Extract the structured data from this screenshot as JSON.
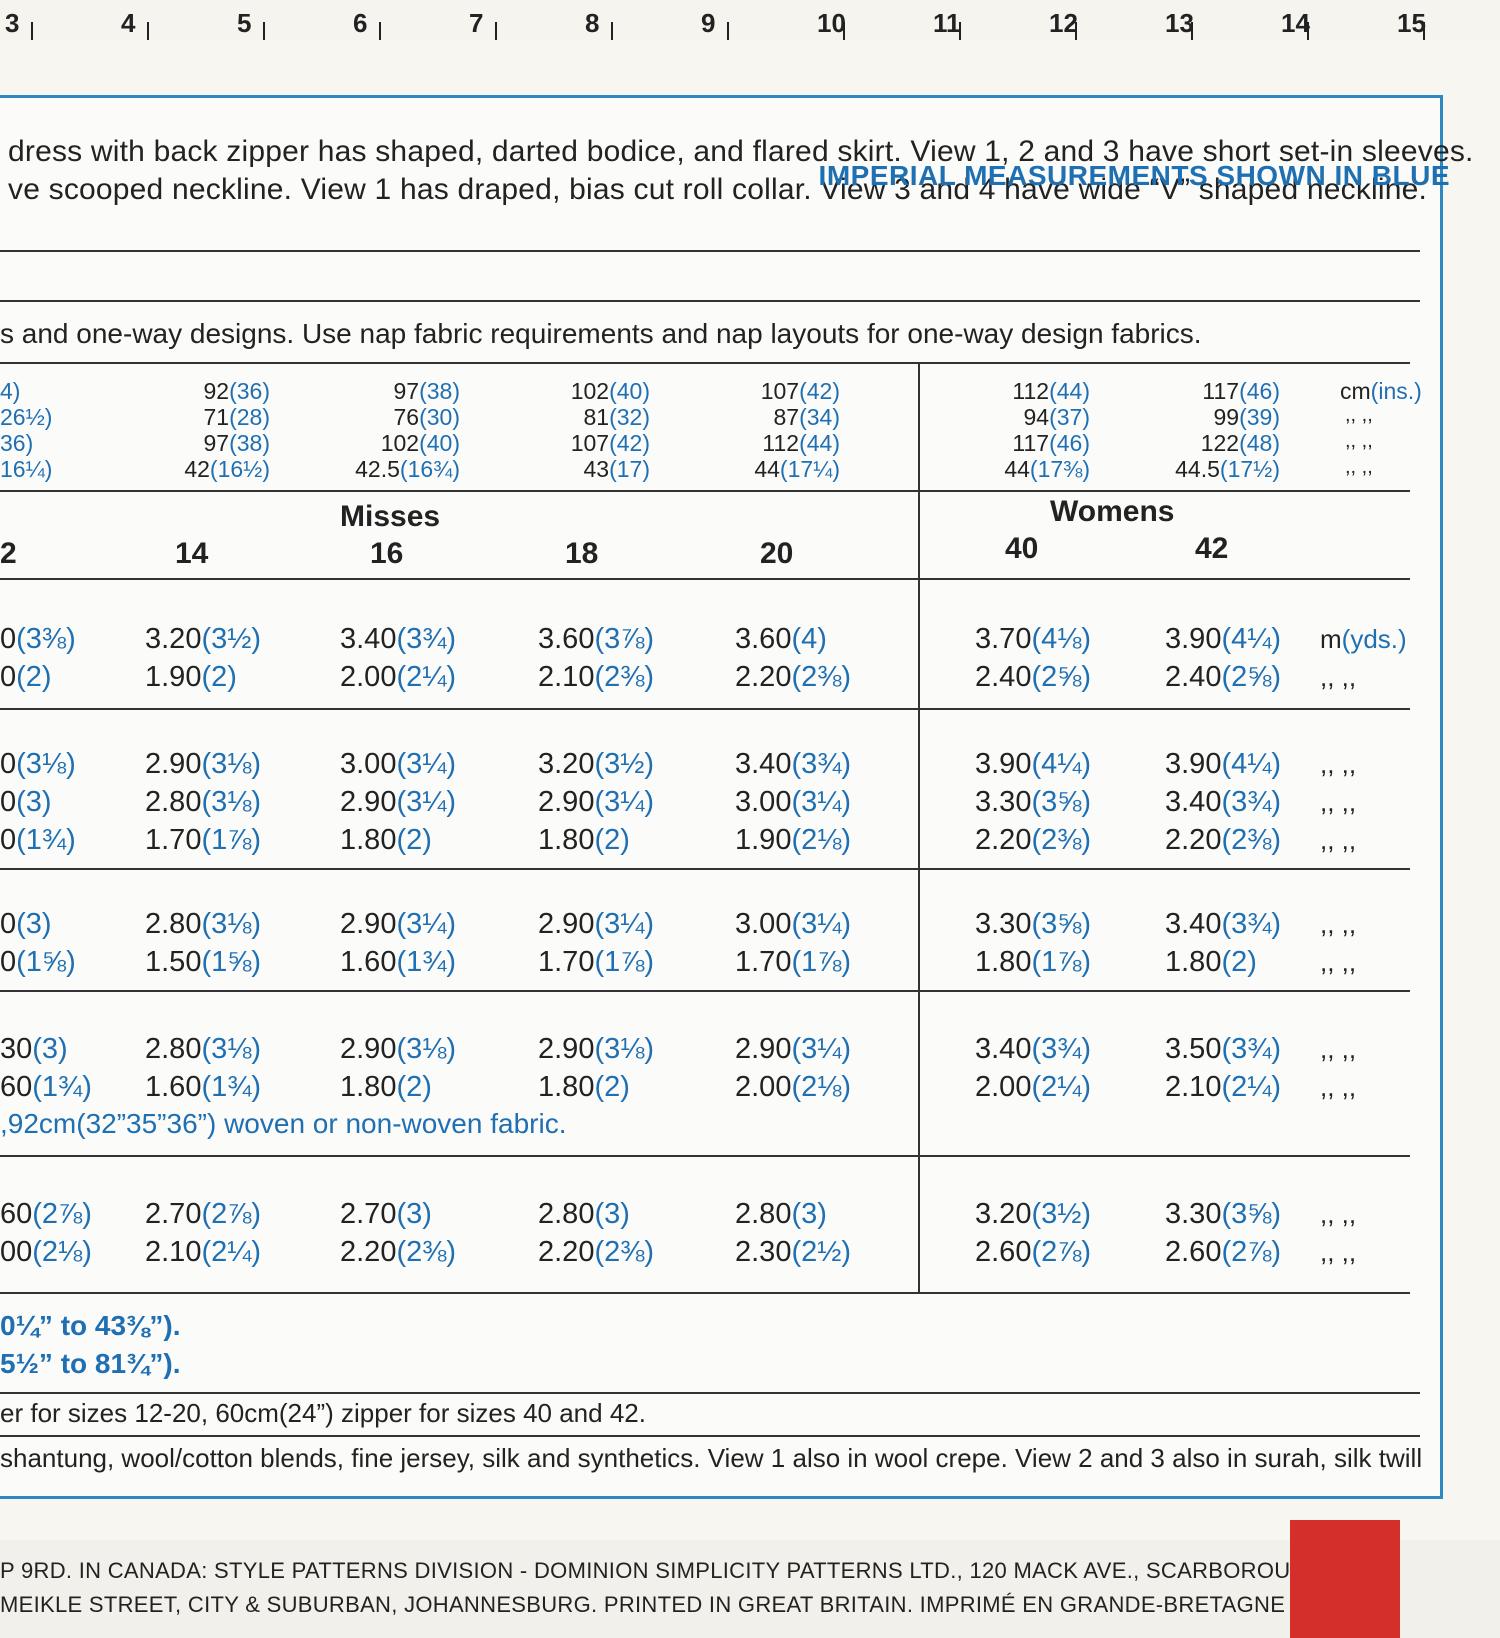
{
  "ruler": {
    "numbers": [
      "3",
      "4",
      "5",
      "6",
      "7",
      "8",
      "9",
      "10",
      "11",
      "12",
      "13",
      "14",
      "15"
    ]
  },
  "description": {
    "line1": "dress with back zipper has shaped, darted bodice, and flared skirt. View 1, 2 and 3 have short set-in sleeves.",
    "line2": "ve scooped neckline. View 1 has draped, bias cut roll collar. View 3 and 4 have wide “V” shaped neckline."
  },
  "imperial_note": "IMPERIAL MEASUREMENTS SHOWN IN BLUE",
  "nap_note": "s and one-way designs. Use nap fabric requirements and nap layouts for one-way design fabrics.",
  "measurements": {
    "partial": [
      "4)",
      "26½)",
      "36)",
      "16¼)"
    ],
    "columns": [
      [
        "92(36)",
        "71(28)",
        "97(38)",
        "42(16½)"
      ],
      [
        "97(38)",
        "76(30)",
        "102(40)",
        "42.5(16¾)"
      ],
      [
        "102(40)",
        "81(32)",
        "107(42)",
        "43(17)"
      ],
      [
        "107(42)",
        "87(34)",
        "112(44)",
        "44(17¼)"
      ],
      [
        "112(44)",
        "94(37)",
        "117(46)",
        "44(17⅜)"
      ],
      [
        "117(46)",
        "99(39)",
        "122(48)",
        "44.5(17½)"
      ]
    ],
    "unit": "cm(ins.)",
    "ditto": ",,  ,,"
  },
  "sizes": {
    "misses_label": "Misses",
    "womens_label": "Womens",
    "partial": "2",
    "list": [
      "14",
      "16",
      "18",
      "20",
      "40",
      "42"
    ]
  },
  "yardage": {
    "unit": "m(yds.)",
    "ditto": ",,  ,,",
    "groups": [
      {
        "partial": [
          "0(3⅜)",
          "0(2)"
        ],
        "rows": [
          [
            "3.20(3½)",
            "3.40(3¾)",
            "3.60(3⅞)",
            "3.60(4)",
            "3.70(4⅛)",
            "3.90(4¼)"
          ],
          [
            "1.90(2)",
            "2.00(2¼)",
            "2.10(2⅜)",
            "2.20(2⅜)",
            "2.40(2⅝)",
            "2.40(2⅝)"
          ]
        ]
      },
      {
        "partial": [
          "0(3⅛)",
          "0(3)",
          "0(1¾)"
        ],
        "rows": [
          [
            "2.90(3⅛)",
            "3.00(3¼)",
            "3.20(3½)",
            "3.40(3¾)",
            "3.90(4¼)",
            "3.90(4¼)"
          ],
          [
            "2.80(3⅛)",
            "2.90(3¼)",
            "2.90(3¼)",
            "3.00(3¼)",
            "3.30(3⅝)",
            "3.40(3¾)"
          ],
          [
            "1.70(1⅞)",
            "1.80(2)",
            "1.80(2)",
            "1.90(2⅛)",
            "2.20(2⅜)",
            "2.20(2⅜)"
          ]
        ]
      },
      {
        "partial": [
          "0(3)",
          "0(1⅝)"
        ],
        "rows": [
          [
            "2.80(3⅛)",
            "2.90(3¼)",
            "2.90(3¼)",
            "3.00(3¼)",
            "3.30(3⅝)",
            "3.40(3¾)"
          ],
          [
            "1.50(1⅝)",
            "1.60(1¾)",
            "1.70(1⅞)",
            "1.70(1⅞)",
            "1.80(1⅞)",
            "1.80(2)"
          ]
        ]
      },
      {
        "partial": [
          "30(3)",
          "60(1¾)"
        ],
        "rows": [
          [
            "2.80(3⅛)",
            "2.90(3⅛)",
            "2.90(3⅛)",
            "2.90(3¼)",
            "3.40(3¾)",
            "3.50(3¾)"
          ],
          [
            "1.60(1¾)",
            "1.80(2)",
            "1.80(2)",
            "2.00(2⅛)",
            "2.00(2¼)",
            "2.10(2¼)"
          ]
        ]
      },
      {
        "partial": [
          "60(2⅞)",
          "00(2⅛)"
        ],
        "rows": [
          [
            "2.70(2⅞)",
            "2.70(3)",
            "2.80(3)",
            "2.80(3)",
            "3.20(3½)",
            "3.30(3⅝)"
          ],
          [
            "2.10(2¼)",
            "2.20(2⅜)",
            "2.20(2⅜)",
            "2.30(2½)",
            "2.60(2⅞)",
            "2.60(2⅞)"
          ]
        ]
      }
    ]
  },
  "interfacing_note": ",92cm(32”35”36”) woven or non-woven fabric.",
  "finished": {
    "line1": "0¼” to 43⅜”).",
    "line2": "5½” to 81¾”)."
  },
  "zipper_note": "er for sizes 12-20, 60cm(24”) zipper for sizes 40 and 42.",
  "fabrics_note": "shantung, wool/cotton blends, fine jersey, silk and synthetics. View 1 also in wool crepe. View 2 and 3 also in surah, silk twill",
  "footer": {
    "line1": "P 9RD. IN CANADA: STYLE PATTERNS DIVISION - DOMINION SIMPLICITY PATTERNS LTD., 120 MACK AVE., SCARBOROUGH",
    "line2": "MEIKLE STREET, CITY & SUBURBAN, JOHANNESBURG. PRINTED IN GREAT BRITAIN. IMPRIMÉ EN GRANDE-BRETAGNE"
  },
  "colors": {
    "blue": "#1f6fb3",
    "border": "#2f88c2",
    "red": "#d42f2a"
  }
}
